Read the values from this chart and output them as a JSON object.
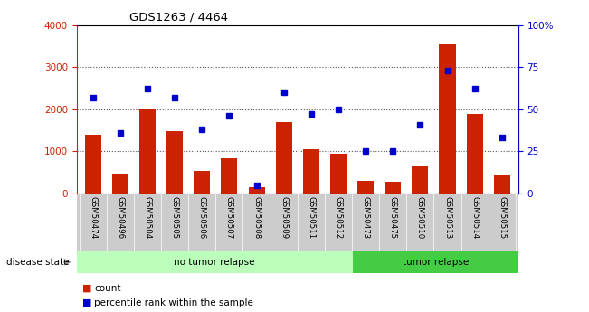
{
  "title": "GDS1263 / 4464",
  "categories": [
    "GSM50474",
    "GSM50496",
    "GSM50504",
    "GSM50505",
    "GSM50506",
    "GSM50507",
    "GSM50508",
    "GSM50509",
    "GSM50511",
    "GSM50512",
    "GSM50473",
    "GSM50475",
    "GSM50510",
    "GSM50513",
    "GSM50514",
    "GSM50515"
  ],
  "count_values": [
    1400,
    480,
    2000,
    1480,
    530,
    830,
    150,
    1700,
    1050,
    950,
    300,
    270,
    650,
    3550,
    1880,
    420
  ],
  "percentile_values": [
    57,
    36,
    62,
    57,
    38,
    46,
    5,
    60,
    47,
    50,
    25,
    25,
    41,
    73,
    62,
    33
  ],
  "no_relapse_count": 10,
  "relapse_count": 6,
  "bar_color": "#cc2200",
  "dot_color": "#0000cc",
  "no_relapse_color": "#bbffbb",
  "relapse_color": "#44cc44",
  "left_axis_color": "#cc2200",
  "right_axis_color": "#0000cc",
  "ylim_left": [
    0,
    4000
  ],
  "ylim_right": [
    0,
    100
  ],
  "left_ticks": [
    0,
    1000,
    2000,
    3000,
    4000
  ],
  "right_tick_labels": [
    "0",
    "25",
    "50",
    "75",
    "100%"
  ],
  "right_ticks": [
    0,
    25,
    50,
    75,
    100
  ],
  "grid_color": "#555555",
  "background_label": "#cccccc",
  "disease_state_label": "disease state",
  "no_relapse_label": "no tumor relapse",
  "relapse_label": "tumor relapse",
  "legend_count": "count",
  "legend_percentile": "percentile rank within the sample"
}
